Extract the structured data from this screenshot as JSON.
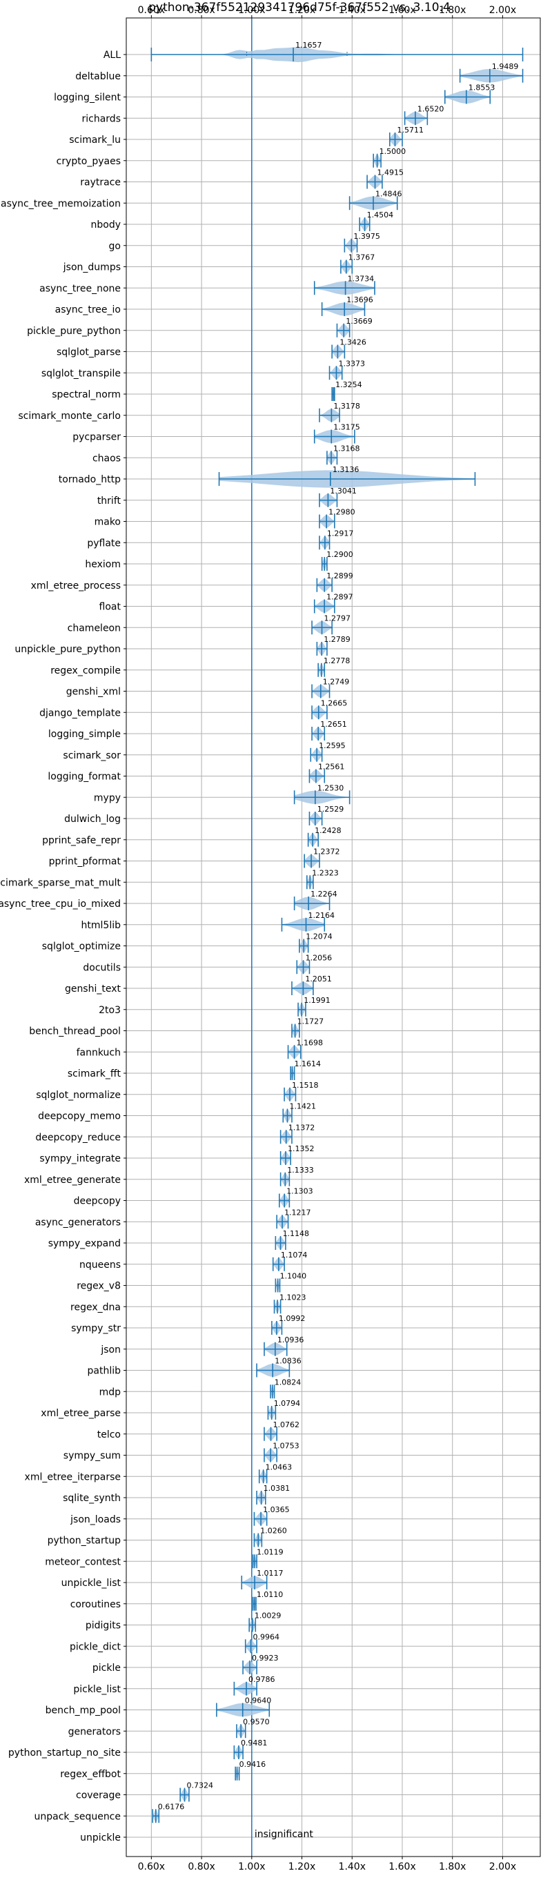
{
  "colors": {
    "accent": "#1f77b4",
    "violin_fill": "#a8c8e4",
    "grid": "#b0b0b0",
    "axis": "#000000"
  },
  "chart_data": {
    "type": "violin",
    "orientation": "horizontal",
    "title": "python-367f552129341796d75f-367f552 vs. 3.10.4",
    "xlabel": "",
    "ylabel": "",
    "xlim": [
      0.5,
      2.15
    ],
    "xticks": [
      0.6,
      0.8,
      1.0,
      1.2,
      1.4,
      1.6,
      1.8,
      2.0
    ],
    "xtick_labels": [
      "0.60x",
      "0.80x",
      "1.00x",
      "1.20x",
      "1.40x",
      "1.60x",
      "1.80x",
      "2.00x"
    ],
    "reference_line": 1.0,
    "grid": true,
    "benchmarks": [
      {
        "name": "ALL",
        "value": 1.1657,
        "label": "1.1657",
        "min": 0.6,
        "max": 2.08,
        "q1": 0.98,
        "q3": 1.38,
        "spread": 0.45
      },
      {
        "name": "deltablue",
        "value": 1.9489,
        "label": "1.9489",
        "min": 1.83,
        "max": 2.08,
        "spread": 0.09
      },
      {
        "name": "logging_silent",
        "value": 1.8553,
        "label": "1.8553",
        "min": 1.77,
        "max": 1.95,
        "spread": 0.07
      },
      {
        "name": "richards",
        "value": 1.652,
        "label": "1.6520",
        "min": 1.61,
        "max": 1.7,
        "spread": 0.04
      },
      {
        "name": "scimark_lu",
        "value": 1.5711,
        "label": "1.5711",
        "min": 1.55,
        "max": 1.6,
        "spread": 0.025
      },
      {
        "name": "crypto_pyaes",
        "value": 1.5,
        "label": "1.5000",
        "min": 1.485,
        "max": 1.515,
        "spread": 0.015
      },
      {
        "name": "raytrace",
        "value": 1.4915,
        "label": "1.4915",
        "min": 1.46,
        "max": 1.52,
        "spread": 0.03
      },
      {
        "name": "async_tree_memoization",
        "value": 1.4846,
        "label": "1.4846",
        "min": 1.39,
        "max": 1.58,
        "spread": 0.09
      },
      {
        "name": "nbody",
        "value": 1.4504,
        "label": "1.4504",
        "min": 1.43,
        "max": 1.47,
        "spread": 0.02
      },
      {
        "name": "go",
        "value": 1.3975,
        "label": "1.3975",
        "min": 1.37,
        "max": 1.42,
        "spread": 0.025
      },
      {
        "name": "json_dumps",
        "value": 1.3767,
        "label": "1.3767",
        "min": 1.355,
        "max": 1.4,
        "spread": 0.02
      },
      {
        "name": "async_tree_none",
        "value": 1.3734,
        "label": "1.3734",
        "min": 1.25,
        "max": 1.49,
        "spread": 0.09
      },
      {
        "name": "async_tree_io",
        "value": 1.3696,
        "label": "1.3696",
        "min": 1.28,
        "max": 1.45,
        "spread": 0.07
      },
      {
        "name": "pickle_pure_python",
        "value": 1.3669,
        "label": "1.3669",
        "min": 1.34,
        "max": 1.39,
        "spread": 0.025
      },
      {
        "name": "sqlglot_parse",
        "value": 1.3426,
        "label": "1.3426",
        "min": 1.32,
        "max": 1.37,
        "spread": 0.025
      },
      {
        "name": "sqlglot_transpile",
        "value": 1.3373,
        "label": "1.3373",
        "min": 1.31,
        "max": 1.36,
        "spread": 0.02
      },
      {
        "name": "spectral_norm",
        "value": 1.3254,
        "label": "1.3254",
        "min": 1.32,
        "max": 1.33,
        "spread": 0.008
      },
      {
        "name": "scimark_monte_carlo",
        "value": 1.3178,
        "label": "1.3178",
        "min": 1.27,
        "max": 1.35,
        "spread": 0.03
      },
      {
        "name": "pycparser",
        "value": 1.3175,
        "label": "1.3175",
        "min": 1.25,
        "max": 1.41,
        "spread": 0.06
      },
      {
        "name": "chaos",
        "value": 1.3168,
        "label": "1.3168",
        "min": 1.3,
        "max": 1.34,
        "spread": 0.02
      },
      {
        "name": "tornado_http",
        "value": 1.3136,
        "label": "1.3136",
        "min": 0.87,
        "max": 1.89,
        "spread": 0.45
      },
      {
        "name": "thrift",
        "value": 1.3041,
        "label": "1.3041",
        "min": 1.27,
        "max": 1.34,
        "spread": 0.03
      },
      {
        "name": "mako",
        "value": 1.298,
        "label": "1.2980",
        "min": 1.27,
        "max": 1.33,
        "spread": 0.03
      },
      {
        "name": "pyflate",
        "value": 1.2917,
        "label": "1.2917",
        "min": 1.27,
        "max": 1.31,
        "spread": 0.02
      },
      {
        "name": "hexiom",
        "value": 1.29,
        "label": "1.2900",
        "min": 1.28,
        "max": 1.3,
        "spread": 0.01
      },
      {
        "name": "xml_etree_process",
        "value": 1.2899,
        "label": "1.2899",
        "min": 1.26,
        "max": 1.32,
        "spread": 0.025
      },
      {
        "name": "float",
        "value": 1.2897,
        "label": "1.2897",
        "min": 1.25,
        "max": 1.33,
        "spread": 0.03
      },
      {
        "name": "chameleon",
        "value": 1.2797,
        "label": "1.2797",
        "min": 1.24,
        "max": 1.32,
        "spread": 0.035
      },
      {
        "name": "unpickle_pure_python",
        "value": 1.2789,
        "label": "1.2789",
        "min": 1.26,
        "max": 1.3,
        "spread": 0.02
      },
      {
        "name": "regex_compile",
        "value": 1.2778,
        "label": "1.2778",
        "min": 1.265,
        "max": 1.29,
        "spread": 0.012
      },
      {
        "name": "genshi_xml",
        "value": 1.2749,
        "label": "1.2749",
        "min": 1.24,
        "max": 1.31,
        "spread": 0.03
      },
      {
        "name": "django_template",
        "value": 1.2665,
        "label": "1.2665",
        "min": 1.24,
        "max": 1.3,
        "spread": 0.025
      },
      {
        "name": "logging_simple",
        "value": 1.2651,
        "label": "1.2651",
        "min": 1.24,
        "max": 1.29,
        "spread": 0.02
      },
      {
        "name": "scimark_sor",
        "value": 1.2595,
        "label": "1.2595",
        "min": 1.235,
        "max": 1.28,
        "spread": 0.02
      },
      {
        "name": "logging_format",
        "value": 1.2561,
        "label": "1.2561",
        "min": 1.23,
        "max": 1.29,
        "spread": 0.025
      },
      {
        "name": "mypy",
        "value": 1.253,
        "label": "1.2530",
        "min": 1.17,
        "max": 1.39,
        "spread": 0.07
      },
      {
        "name": "dulwich_log",
        "value": 1.2529,
        "label": "1.2529",
        "min": 1.23,
        "max": 1.28,
        "spread": 0.02
      },
      {
        "name": "pprint_safe_repr",
        "value": 1.2428,
        "label": "1.2428",
        "min": 1.225,
        "max": 1.265,
        "spread": 0.018
      },
      {
        "name": "pprint_pformat",
        "value": 1.2372,
        "label": "1.2372",
        "min": 1.21,
        "max": 1.27,
        "spread": 0.025
      },
      {
        "name": "scimark_sparse_mat_mult",
        "value": 1.2323,
        "label": "1.2323",
        "min": 1.22,
        "max": 1.245,
        "spread": 0.012
      },
      {
        "name": "async_tree_cpu_io_mixed",
        "value": 1.2264,
        "label": "1.2264",
        "min": 1.17,
        "max": 1.31,
        "spread": 0.06
      },
      {
        "name": "html5lib",
        "value": 1.2164,
        "label": "1.2164",
        "min": 1.12,
        "max": 1.29,
        "spread": 0.08
      },
      {
        "name": "sqlglot_optimize",
        "value": 1.2074,
        "label": "1.2074",
        "min": 1.19,
        "max": 1.225,
        "spread": 0.015
      },
      {
        "name": "docutils",
        "value": 1.2056,
        "label": "1.2056",
        "min": 1.18,
        "max": 1.23,
        "spread": 0.02
      },
      {
        "name": "genshi_text",
        "value": 1.2051,
        "label": "1.2051",
        "min": 1.16,
        "max": 1.245,
        "spread": 0.03
      },
      {
        "name": "2to3",
        "value": 1.1991,
        "label": "1.1991",
        "min": 1.185,
        "max": 1.215,
        "spread": 0.012
      },
      {
        "name": "bench_thread_pool",
        "value": 1.1727,
        "label": "1.1727",
        "min": 1.16,
        "max": 1.19,
        "spread": 0.012
      },
      {
        "name": "fannkuch",
        "value": 1.1698,
        "label": "1.1698",
        "min": 1.145,
        "max": 1.195,
        "spread": 0.022
      },
      {
        "name": "scimark_fft",
        "value": 1.1614,
        "label": "1.1614",
        "min": 1.155,
        "max": 1.17,
        "spread": 0.008
      },
      {
        "name": "sqlglot_normalize",
        "value": 1.1518,
        "label": "1.1518",
        "min": 1.13,
        "max": 1.175,
        "spread": 0.02
      },
      {
        "name": "deepcopy_memo",
        "value": 1.1421,
        "label": "1.1421",
        "min": 1.125,
        "max": 1.16,
        "spread": 0.015
      },
      {
        "name": "deepcopy_reduce",
        "value": 1.1372,
        "label": "1.1372",
        "min": 1.115,
        "max": 1.16,
        "spread": 0.02
      },
      {
        "name": "sympy_integrate",
        "value": 1.1352,
        "label": "1.1352",
        "min": 1.115,
        "max": 1.155,
        "spread": 0.018
      },
      {
        "name": "xml_etree_generate",
        "value": 1.1333,
        "label": "1.1333",
        "min": 1.115,
        "max": 1.15,
        "spread": 0.015
      },
      {
        "name": "deepcopy",
        "value": 1.1303,
        "label": "1.1303",
        "min": 1.11,
        "max": 1.15,
        "spread": 0.018
      },
      {
        "name": "async_generators",
        "value": 1.1217,
        "label": "1.1217",
        "min": 1.1,
        "max": 1.145,
        "spread": 0.02
      },
      {
        "name": "sympy_expand",
        "value": 1.1148,
        "label": "1.1148",
        "min": 1.095,
        "max": 1.135,
        "spread": 0.018
      },
      {
        "name": "nqueens",
        "value": 1.1074,
        "label": "1.1074",
        "min": 1.085,
        "max": 1.13,
        "spread": 0.02
      },
      {
        "name": "regex_v8",
        "value": 1.104,
        "label": "1.1040",
        "min": 1.095,
        "max": 1.112,
        "spread": 0.008
      },
      {
        "name": "regex_dna",
        "value": 1.1023,
        "label": "1.1023",
        "min": 1.09,
        "max": 1.115,
        "spread": 0.012
      },
      {
        "name": "sympy_str",
        "value": 1.0992,
        "label": "1.0992",
        "min": 1.08,
        "max": 1.12,
        "spread": 0.018
      },
      {
        "name": "json",
        "value": 1.0936,
        "label": "1.0936",
        "min": 1.05,
        "max": 1.14,
        "spread": 0.03
      },
      {
        "name": "pathlib",
        "value": 1.0836,
        "label": "1.0836",
        "min": 1.02,
        "max": 1.15,
        "spread": 0.05
      },
      {
        "name": "mdp",
        "value": 1.0824,
        "label": "1.0824",
        "min": 1.075,
        "max": 1.09,
        "spread": 0.008
      },
      {
        "name": "xml_etree_parse",
        "value": 1.0794,
        "label": "1.0794",
        "min": 1.065,
        "max": 1.095,
        "spread": 0.012
      },
      {
        "name": "telco",
        "value": 1.0762,
        "label": "1.0762",
        "min": 1.05,
        "max": 1.1,
        "spread": 0.02
      },
      {
        "name": "sympy_sum",
        "value": 1.0753,
        "label": "1.0753",
        "min": 1.05,
        "max": 1.1,
        "spread": 0.02
      },
      {
        "name": "xml_etree_iterparse",
        "value": 1.0463,
        "label": "1.0463",
        "min": 1.03,
        "max": 1.06,
        "spread": 0.014
      },
      {
        "name": "sqlite_synth",
        "value": 1.0381,
        "label": "1.0381",
        "min": 1.02,
        "max": 1.055,
        "spread": 0.015
      },
      {
        "name": "json_loads",
        "value": 1.0365,
        "label": "1.0365",
        "min": 1.01,
        "max": 1.06,
        "spread": 0.02
      },
      {
        "name": "python_startup",
        "value": 1.026,
        "label": "1.0260",
        "min": 1.01,
        "max": 1.04,
        "spread": 0.012
      },
      {
        "name": "meteor_contest",
        "value": 1.0119,
        "label": "1.0119",
        "min": 1.005,
        "max": 1.02,
        "spread": 0.008
      },
      {
        "name": "unpickle_list",
        "value": 1.0117,
        "label": "1.0117",
        "min": 0.96,
        "max": 1.06,
        "spread": 0.035
      },
      {
        "name": "coroutines",
        "value": 1.011,
        "label": "1.0110",
        "min": 1.005,
        "max": 1.017,
        "spread": 0.006
      },
      {
        "name": "pidigits",
        "value": 1.0029,
        "label": "1.0029",
        "min": 0.99,
        "max": 1.015,
        "spread": 0.01
      },
      {
        "name": "pickle_dict",
        "value": 0.9964,
        "label": "0.9964",
        "min": 0.975,
        "max": 1.02,
        "spread": 0.018
      },
      {
        "name": "pickle",
        "value": 0.9923,
        "label": "0.9923",
        "min": 0.965,
        "max": 1.02,
        "spread": 0.022
      },
      {
        "name": "pickle_list",
        "value": 0.9786,
        "label": "0.9786",
        "min": 0.93,
        "max": 1.02,
        "spread": 0.035
      },
      {
        "name": "bench_mp_pool",
        "value": 0.964,
        "label": "0.9640",
        "min": 0.86,
        "max": 1.07,
        "spread": 0.08
      },
      {
        "name": "generators",
        "value": 0.957,
        "label": "0.9570",
        "min": 0.94,
        "max": 0.975,
        "spread": 0.015
      },
      {
        "name": "python_startup_no_site",
        "value": 0.9481,
        "label": "0.9481",
        "min": 0.93,
        "max": 0.965,
        "spread": 0.015
      },
      {
        "name": "regex_effbot",
        "value": 0.9416,
        "label": "0.9416",
        "min": 0.935,
        "max": 0.95,
        "spread": 0.006
      },
      {
        "name": "coverage",
        "value": 0.7324,
        "label": "0.7324",
        "min": 0.715,
        "max": 0.75,
        "spread": 0.015
      },
      {
        "name": "unpack_sequence",
        "value": 0.6176,
        "label": "0.6176",
        "min": 0.605,
        "max": 0.63,
        "spread": 0.01
      },
      {
        "name": "unpickle",
        "value": null,
        "label": "insignificant"
      }
    ]
  }
}
